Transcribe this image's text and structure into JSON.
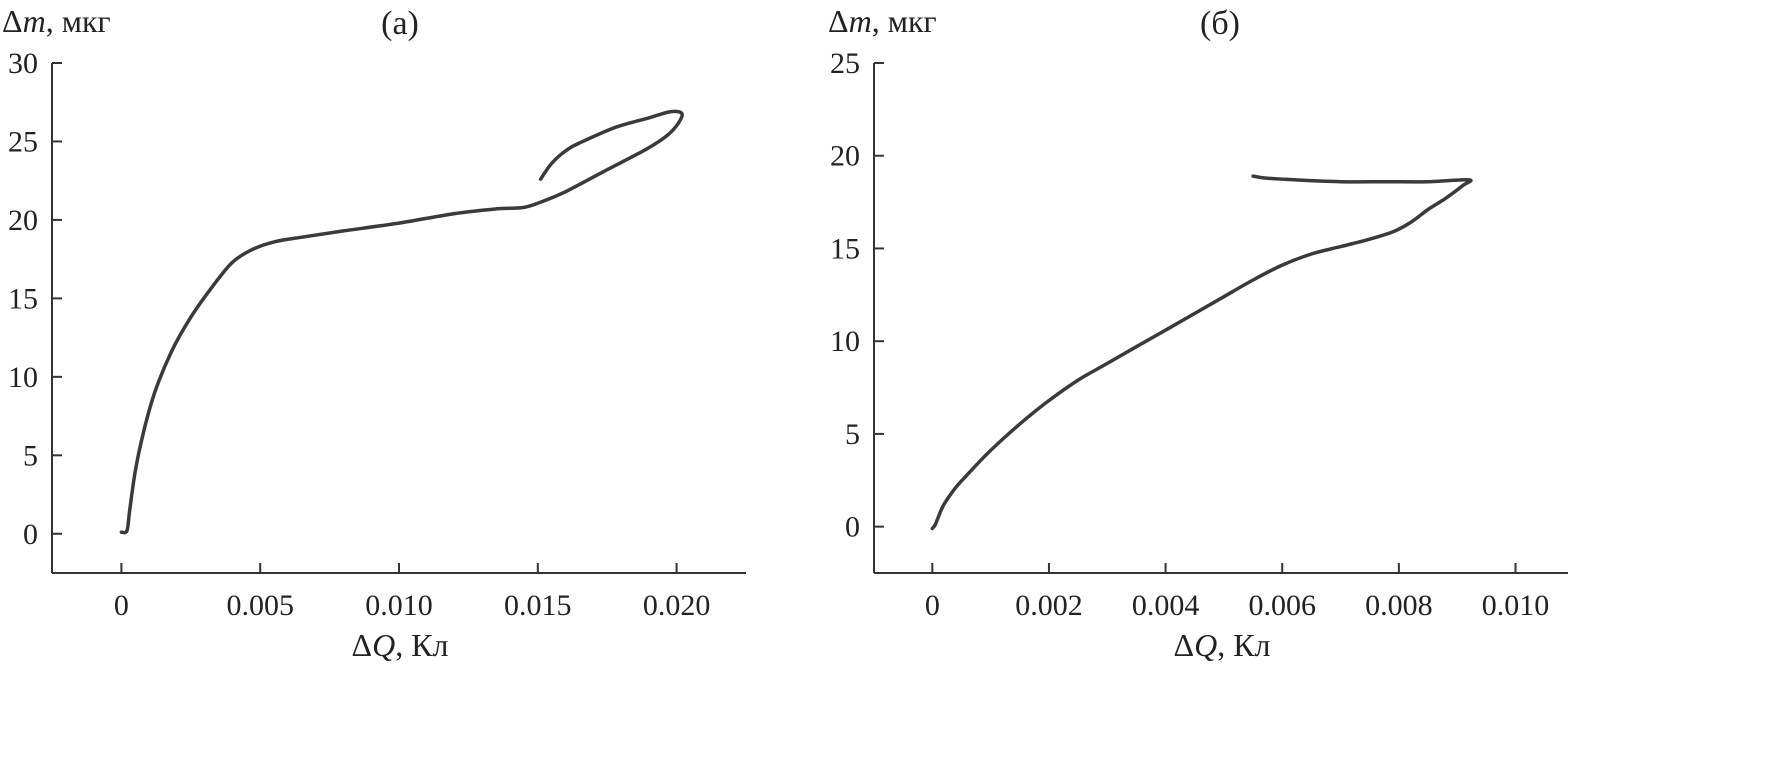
{
  "colors": {
    "axis": "#333333",
    "curve": "#3a3a3a",
    "text": "#222222"
  },
  "chart_data": [
    {
      "type": "line",
      "panel_label": "(а)",
      "ylabel": "Δm, мкг",
      "xlabel": "ΔQ, Кл",
      "xlim": [
        -0.0025,
        0.0225
      ],
      "ylim": [
        -2.5,
        30
      ],
      "xticks": [
        0,
        0.005,
        0.01,
        0.015,
        0.02
      ],
      "xtick_labels": [
        "0",
        "0.005",
        "0.010",
        "0.015",
        "0.020"
      ],
      "yticks": [
        0,
        5,
        10,
        15,
        20,
        25,
        30
      ],
      "ytick_labels": [
        "0",
        "5",
        "10",
        "15",
        "20",
        "25",
        "30"
      ],
      "grid": false,
      "series": [
        {
          "x": [
            0,
            0.0002,
            0.0003,
            0.0005,
            0.0008,
            0.0012,
            0.0018,
            0.0025,
            0.0033,
            0.004,
            0.0047,
            0.0055,
            0.0065,
            0.008,
            0.01,
            0.012,
            0.0135,
            0.0145,
            0.0152,
            0.016,
            0.0175,
            0.019,
            0.0198,
            0.0202,
            0.0198,
            0.019,
            0.0178,
            0.0165,
            0.016,
            0.0155,
            0.0151
          ],
          "y": [
            0.1,
            0.2,
            1.5,
            4,
            6.5,
            9,
            11.6,
            13.8,
            15.8,
            17.3,
            18.1,
            18.6,
            18.9,
            19.3,
            19.8,
            20.4,
            20.7,
            20.8,
            21.2,
            21.8,
            23.2,
            24.6,
            25.6,
            26.7,
            26.9,
            26.5,
            25.9,
            24.9,
            24.4,
            23.6,
            22.6
          ]
        }
      ]
    },
    {
      "type": "line",
      "panel_label": "(б)",
      "ylabel": "Δm, мкг",
      "xlabel": "ΔQ, Кл",
      "xlim": [
        -0.001,
        0.0109
      ],
      "ylim": [
        -2.5,
        25
      ],
      "xticks": [
        0,
        0.002,
        0.004,
        0.006,
        0.008,
        0.01
      ],
      "xtick_labels": [
        "0",
        "0.002",
        "0.004",
        "0.006",
        "0.008",
        "0.010"
      ],
      "yticks": [
        0,
        5,
        10,
        15,
        20,
        25
      ],
      "ytick_labels": [
        "0",
        "5",
        "10",
        "15",
        "20",
        "25"
      ],
      "grid": false,
      "series": [
        {
          "x": [
            0,
            5e-05,
            0.0001,
            0.0002,
            0.0004,
            0.0006,
            0.0009,
            0.0012,
            0.0016,
            0.002,
            0.0025,
            0.003,
            0.0035,
            0.004,
            0.0045,
            0.005,
            0.0055,
            0.006,
            0.0065,
            0.007,
            0.0075,
            0.0079,
            0.0082,
            0.0085,
            0.0088,
            0.0091,
            0.0092,
            0.0085,
            0.0078,
            0.007,
            0.0062,
            0.0057,
            0.0055
          ],
          "y": [
            -0.1,
            0.1,
            0.5,
            1.2,
            2.1,
            2.8,
            3.8,
            4.7,
            5.8,
            6.8,
            7.9,
            8.8,
            9.7,
            10.6,
            11.5,
            12.4,
            13.3,
            14.1,
            14.7,
            15.1,
            15.5,
            15.9,
            16.4,
            17.1,
            17.7,
            18.4,
            18.7,
            18.6,
            18.6,
            18.6,
            18.7,
            18.8,
            18.9
          ]
        }
      ]
    }
  ]
}
